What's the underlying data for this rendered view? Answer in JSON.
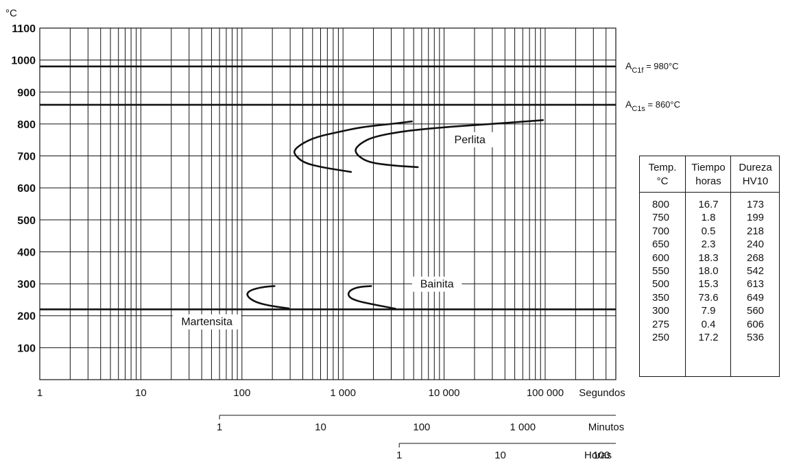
{
  "chart_data": {
    "type": "line",
    "y_unit": "°C",
    "ylim": [
      0,
      1100
    ],
    "y_ticks": [
      100,
      200,
      300,
      400,
      500,
      600,
      700,
      800,
      900,
      1000,
      1100
    ],
    "x_scale": "log",
    "xlim_seconds": [
      1,
      500000
    ],
    "x_axes": [
      {
        "unit": "Segundos",
        "ticks": [
          {
            "value": 1,
            "label": "1"
          },
          {
            "value": 10,
            "label": "10"
          },
          {
            "value": 100,
            "label": "100"
          },
          {
            "value": 1000,
            "label": "1 000"
          },
          {
            "value": 10000,
            "label": "10 000"
          },
          {
            "value": 100000,
            "label": "100 000"
          }
        ]
      },
      {
        "unit": "Minutos",
        "ticks": [
          {
            "value": 1,
            "label": "1"
          },
          {
            "value": 10,
            "label": "10"
          },
          {
            "value": 100,
            "label": "100"
          },
          {
            "value": 1000,
            "label": "1 000"
          }
        ]
      },
      {
        "unit": "Horas",
        "ticks": [
          {
            "value": 1,
            "label": "1"
          },
          {
            "value": 10,
            "label": "10"
          },
          {
            "value": 100,
            "label": "100"
          }
        ]
      }
    ],
    "reference_lines": [
      {
        "label_main": "A",
        "label_sub": "C1f",
        "label_value": " = 980°C",
        "y": 980
      },
      {
        "label_main": "A",
        "label_sub": "C1s",
        "label_value": " = 860°C",
        "y": 860
      },
      {
        "y": 220
      }
    ],
    "curves": [
      {
        "points": [
          [
            4800,
            808
          ],
          [
            3000,
            800
          ],
          [
            1500,
            790
          ],
          [
            900,
            775
          ],
          [
            550,
            760
          ],
          [
            400,
            740
          ],
          [
            330,
            720
          ],
          [
            330,
            705
          ],
          [
            400,
            680
          ],
          [
            600,
            665
          ],
          [
            1200,
            650
          ]
        ]
      },
      {
        "points": [
          [
            95000,
            812
          ],
          [
            30000,
            800
          ],
          [
            10000,
            790
          ],
          [
            4000,
            778
          ],
          [
            2000,
            760
          ],
          [
            1500,
            740
          ],
          [
            1300,
            720
          ],
          [
            1400,
            700
          ],
          [
            1800,
            680
          ],
          [
            3000,
            670
          ],
          [
            5500,
            665
          ]
        ]
      },
      {
        "points": [
          [
            210,
            293
          ],
          [
            160,
            290
          ],
          [
            120,
            280
          ],
          [
            110,
            265
          ],
          [
            130,
            245
          ],
          [
            180,
            232
          ],
          [
            290,
            223
          ]
        ]
      },
      {
        "points": [
          [
            1900,
            293
          ],
          [
            1400,
            290
          ],
          [
            1150,
            278
          ],
          [
            1120,
            262
          ],
          [
            1300,
            248
          ],
          [
            2000,
            235
          ],
          [
            3300,
            222
          ]
        ]
      }
    ],
    "region_labels": [
      {
        "text": "Perlita",
        "x_sec": 18000,
        "y": 740
      },
      {
        "text": "Bainita",
        "x_sec": 8500,
        "y": 288
      },
      {
        "text": "Martensita",
        "x_sec": 45,
        "y": 170
      }
    ]
  },
  "table": {
    "headers": [
      {
        "line1": "Temp.",
        "line2": "°C"
      },
      {
        "line1": "Tiempo",
        "line2": "horas"
      },
      {
        "line1": "Dureza",
        "line2": "HV10"
      }
    ],
    "rows": [
      [
        "800",
        "16.7",
        "173"
      ],
      [
        "750",
        "1.8",
        "199"
      ],
      [
        "700",
        "0.5",
        "218"
      ],
      [
        "650",
        "2.3",
        "240"
      ],
      [
        "600",
        "18.3",
        "268"
      ],
      [
        "550",
        "18.0",
        "542"
      ],
      [
        "500",
        "15.3",
        "613"
      ],
      [
        "350",
        "73.6",
        "649"
      ],
      [
        "300",
        "7.9",
        "560"
      ],
      [
        "275",
        "0.4",
        "606"
      ],
      [
        "250",
        "17.2",
        "536"
      ]
    ]
  }
}
